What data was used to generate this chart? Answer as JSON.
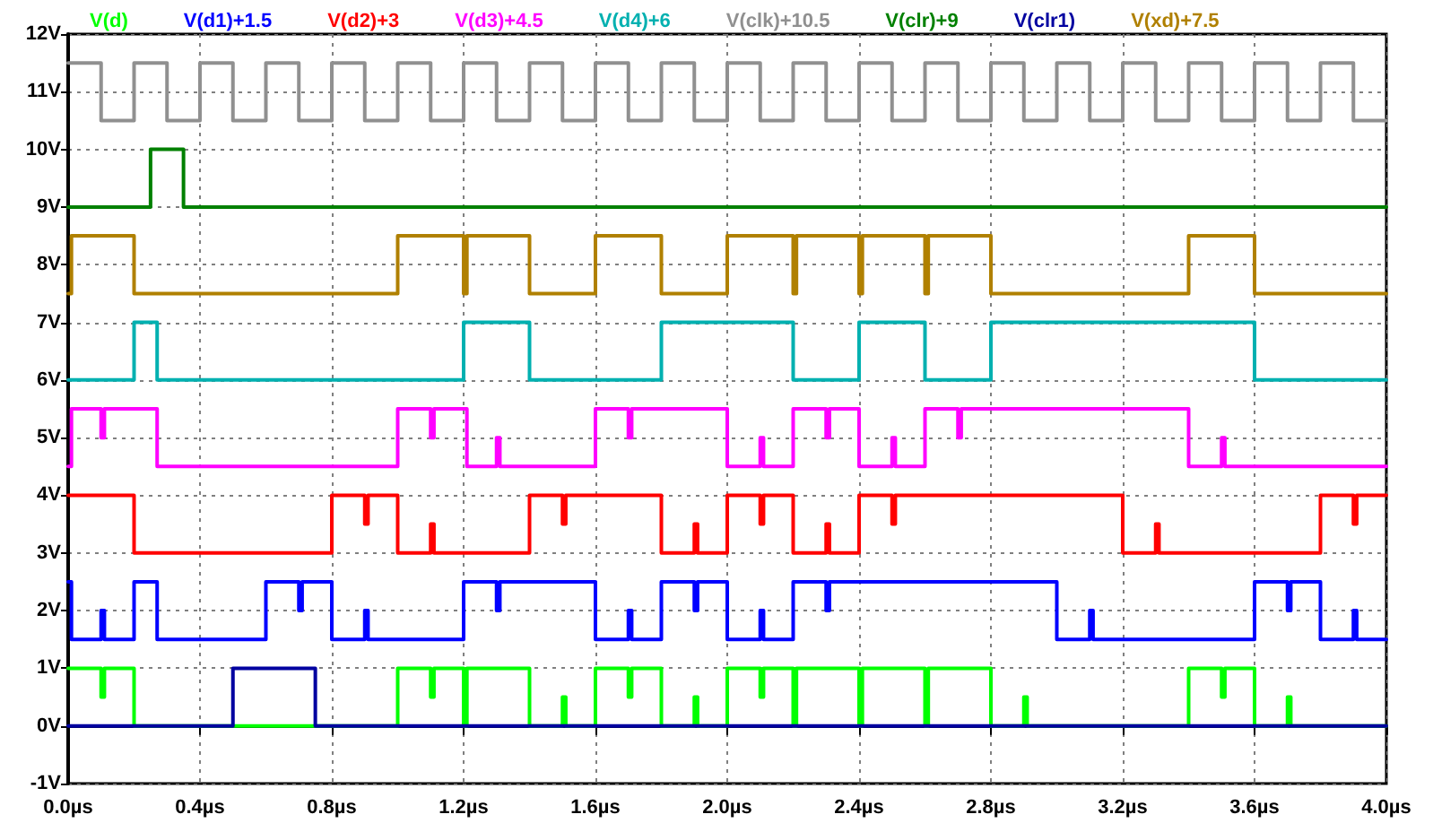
{
  "chart_data": {
    "type": "step",
    "xlim": [
      0,
      4
    ],
    "ylim": [
      -1,
      12
    ],
    "xticks": [
      {
        "value": 0,
        "label": "0.0µs"
      },
      {
        "value": 0.4,
        "label": "0.4µs"
      },
      {
        "value": 0.8,
        "label": "0.8µs"
      },
      {
        "value": 1.2,
        "label": "1.2µs"
      },
      {
        "value": 1.6,
        "label": "1.6µs"
      },
      {
        "value": 2.0,
        "label": "2.0µs"
      },
      {
        "value": 2.4,
        "label": "2.4µs"
      },
      {
        "value": 2.8,
        "label": "2.8µs"
      },
      {
        "value": 3.2,
        "label": "3.2µs"
      },
      {
        "value": 3.6,
        "label": "3.6µs"
      },
      {
        "value": 4.0,
        "label": "4.0µs"
      }
    ],
    "yticks": [
      {
        "value": -1,
        "label": "-1V"
      },
      {
        "value": 0,
        "label": "0V"
      },
      {
        "value": 1,
        "label": "1V"
      },
      {
        "value": 2,
        "label": "2V"
      },
      {
        "value": 3,
        "label": "3V"
      },
      {
        "value": 4,
        "label": "4V"
      },
      {
        "value": 5,
        "label": "5V"
      },
      {
        "value": 6,
        "label": "6V"
      },
      {
        "value": 7,
        "label": "7V"
      },
      {
        "value": 8,
        "label": "8V"
      },
      {
        "value": 9,
        "label": "9V"
      },
      {
        "value": 10,
        "label": "10V"
      },
      {
        "value": 11,
        "label": "11V"
      },
      {
        "value": 12,
        "label": "12V"
      }
    ],
    "grid": true,
    "legend": "top",
    "marker": "none",
    "line_style": "solid",
    "series": [
      {
        "name": "V(d)",
        "color": "#00ff00",
        "x": [
          0,
          0.1,
          0.11,
          0.2,
          1.0,
          1.1,
          1.11,
          1.2,
          1.21,
          1.4,
          1.5,
          1.51,
          1.6,
          1.7,
          1.71,
          1.8,
          1.9,
          1.91,
          2.0,
          2.1,
          2.11,
          2.2,
          2.21,
          2.4,
          2.41,
          2.6,
          2.61,
          2.8,
          2.9,
          2.91,
          3.4,
          3.5,
          3.51,
          3.6,
          3.7,
          3.71,
          4.0
        ],
        "values": [
          1,
          0.5,
          1,
          0,
          1,
          0.5,
          1,
          0,
          1,
          0,
          0.5,
          0,
          1,
          0.5,
          1,
          0,
          0.5,
          0,
          1,
          0.5,
          1,
          0,
          1,
          0,
          1,
          0,
          1,
          0,
          0.5,
          0,
          1,
          0.5,
          1,
          0,
          0.5,
          0,
          0
        ]
      },
      {
        "name": "V(d1)+1.5",
        "color": "#0000ff",
        "x": [
          0,
          0.01,
          0.1,
          0.11,
          0.2,
          0.27,
          0.6,
          0.7,
          0.71,
          0.8,
          0.9,
          0.91,
          1.2,
          1.3,
          1.31,
          1.6,
          1.7,
          1.71,
          1.8,
          1.9,
          1.91,
          2.0,
          2.1,
          2.11,
          2.2,
          2.3,
          2.31,
          3.0,
          3.1,
          3.11,
          3.6,
          3.7,
          3.71,
          3.8,
          3.9,
          3.91,
          4.0
        ],
        "values": [
          2.5,
          1.5,
          2,
          1.5,
          2.5,
          1.5,
          2.5,
          2,
          2.5,
          1.5,
          2,
          1.5,
          2.5,
          2,
          2.5,
          1.5,
          2,
          1.5,
          2.5,
          2,
          2.5,
          1.5,
          2,
          1.5,
          2.5,
          2,
          2.5,
          1.5,
          2,
          1.5,
          2.5,
          2,
          2.5,
          1.5,
          2,
          1.5,
          1.5
        ]
      },
      {
        "name": "V(d2)+3",
        "color": "#ff0000",
        "x": [
          0,
          0.2,
          0.8,
          0.9,
          0.91,
          1.0,
          1.1,
          1.11,
          1.4,
          1.5,
          1.51,
          1.8,
          1.9,
          1.91,
          2.0,
          2.1,
          2.11,
          2.2,
          2.3,
          2.31,
          2.4,
          2.5,
          2.51,
          3.2,
          3.3,
          3.31,
          3.8,
          3.9,
          3.91,
          4.0
        ],
        "values": [
          4,
          3,
          4,
          3.5,
          4,
          3,
          3.5,
          3,
          4,
          3.5,
          4,
          3,
          3.5,
          3,
          4,
          3.5,
          4,
          3,
          3.5,
          3,
          4,
          3.5,
          4,
          3,
          3.5,
          3,
          4,
          3.5,
          4,
          4
        ]
      },
      {
        "name": "V(d3)+4.5",
        "color": "#ff00ff",
        "x": [
          0,
          0.01,
          0.1,
          0.11,
          0.27,
          1.0,
          1.1,
          1.11,
          1.21,
          1.3,
          1.31,
          1.6,
          1.7,
          1.71,
          2.0,
          2.1,
          2.11,
          2.2,
          2.3,
          2.31,
          2.4,
          2.5,
          2.51,
          2.6,
          2.7,
          2.71,
          3.4,
          3.5,
          3.51,
          4.0
        ],
        "values": [
          4.5,
          5.5,
          5,
          5.5,
          4.5,
          5.5,
          5,
          5.5,
          4.5,
          5,
          4.5,
          5.5,
          5,
          5.5,
          4.5,
          5,
          4.5,
          5.5,
          5,
          5.5,
          4.5,
          5,
          4.5,
          5.5,
          5,
          5.5,
          4.5,
          5,
          4.5,
          4.5
        ]
      },
      {
        "name": "V(d4)+6",
        "color": "#00b0b0",
        "x": [
          0,
          0.2,
          0.27,
          1.2,
          1.4,
          1.8,
          2.2,
          2.4,
          2.6,
          2.8,
          3.6,
          4.0
        ],
        "values": [
          6,
          7,
          6,
          7,
          6,
          7,
          6,
          7,
          6,
          7,
          6,
          6
        ]
      },
      {
        "name": "V(clk)+10.5",
        "color": "#909090",
        "x": [
          0,
          0.1,
          0.2,
          0.3,
          0.4,
          0.5,
          0.6,
          0.7,
          0.8,
          0.9,
          1.0,
          1.1,
          1.2,
          1.3,
          1.4,
          1.5,
          1.6,
          1.7,
          1.8,
          1.9,
          2.0,
          2.1,
          2.2,
          2.3,
          2.4,
          2.5,
          2.6,
          2.7,
          2.8,
          2.9,
          3.0,
          3.1,
          3.2,
          3.3,
          3.4,
          3.5,
          3.6,
          3.7,
          3.8,
          3.9,
          4.0
        ],
        "values": [
          11.5,
          10.5,
          11.5,
          10.5,
          11.5,
          10.5,
          11.5,
          10.5,
          11.5,
          10.5,
          11.5,
          10.5,
          11.5,
          10.5,
          11.5,
          10.5,
          11.5,
          10.5,
          11.5,
          10.5,
          11.5,
          10.5,
          11.5,
          10.5,
          11.5,
          10.5,
          11.5,
          10.5,
          11.5,
          10.5,
          11.5,
          10.5,
          11.5,
          10.5,
          11.5,
          10.5,
          11.5,
          10.5,
          11.5,
          10.5,
          10.5
        ]
      },
      {
        "name": "V(clr)+9",
        "color": "#008000",
        "x": [
          0,
          0.25,
          0.35,
          4.0
        ],
        "values": [
          9,
          10,
          9,
          9
        ]
      },
      {
        "name": "V(clr1)",
        "color": "#0000a0",
        "x": [
          0,
          0.5,
          0.75,
          4.0
        ],
        "values": [
          0,
          1,
          0,
          0
        ]
      },
      {
        "name": "V(xd)+7.5",
        "color": "#b08000",
        "x": [
          0,
          0.01,
          0.2,
          1.0,
          1.2,
          1.21,
          1.4,
          1.6,
          1.8,
          2.0,
          2.2,
          2.21,
          2.4,
          2.41,
          2.6,
          2.61,
          2.8,
          3.4,
          3.6,
          4.0
        ],
        "values": [
          7.5,
          8.5,
          7.5,
          8.5,
          7.5,
          8.5,
          7.5,
          8.5,
          7.5,
          8.5,
          7.5,
          8.5,
          7.5,
          8.5,
          7.5,
          8.5,
          7.5,
          8.5,
          7.5,
          7.5
        ]
      }
    ]
  }
}
